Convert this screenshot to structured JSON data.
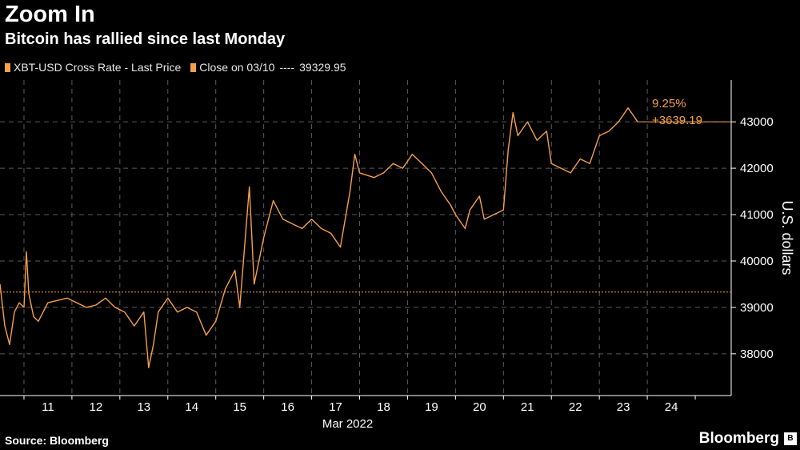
{
  "header": {
    "title": "Zoom In",
    "subtitle": "Bitcoin has rallied since last Monday"
  },
  "legend": {
    "series_label": "XBT-USD Cross Rate - Last Price",
    "close_label": "Close on 03/10",
    "close_dashes": "----",
    "close_value": "39329.95"
  },
  "footer": {
    "source": "Source: Bloomberg",
    "brand": "Bloomberg",
    "brand_icon": "B"
  },
  "colors": {
    "line": "#f5a04a",
    "background": "#000000",
    "grid": "#5a5a5a"
  },
  "chart_data": {
    "type": "line",
    "title": "Zoom In",
    "subtitle": "Bitcoin has rallied since last Monday",
    "xlabel": "Mar 2022",
    "ylabel": "U.S. dollars",
    "x_ticks": [
      "11",
      "12",
      "13",
      "14",
      "15",
      "16",
      "17",
      "18",
      "19",
      "20",
      "21",
      "22",
      "23",
      "24"
    ],
    "y_ticks": [
      38000,
      39000,
      40000,
      41000,
      42000,
      43000
    ],
    "ylim": [
      37100,
      43900
    ],
    "xlim": [
      10.5,
      25.75
    ],
    "y_axis_position": "right",
    "grid": true,
    "reference_line": {
      "label": "Close on 03/10",
      "value": 39329.95
    },
    "annotation": {
      "percent": "9.25%",
      "change": "+3639.19"
    },
    "series": [
      {
        "name": "XBT-USD Cross Rate - Last Price",
        "points": [
          [
            10.5,
            39500
          ],
          [
            10.6,
            38600
          ],
          [
            10.7,
            38200
          ],
          [
            10.8,
            38900
          ],
          [
            10.9,
            39100
          ],
          [
            11.0,
            39000
          ],
          [
            11.05,
            40200
          ],
          [
            11.1,
            39300
          ],
          [
            11.2,
            38800
          ],
          [
            11.3,
            38700
          ],
          [
            11.5,
            39100
          ],
          [
            11.7,
            39150
          ],
          [
            11.9,
            39200
          ],
          [
            12.1,
            39100
          ],
          [
            12.3,
            39000
          ],
          [
            12.5,
            39050
          ],
          [
            12.7,
            39200
          ],
          [
            12.9,
            39000
          ],
          [
            13.1,
            38900
          ],
          [
            13.3,
            38600
          ],
          [
            13.5,
            38900
          ],
          [
            13.6,
            37700
          ],
          [
            13.7,
            38200
          ],
          [
            13.8,
            38900
          ],
          [
            14.0,
            39200
          ],
          [
            14.2,
            38900
          ],
          [
            14.4,
            39000
          ],
          [
            14.6,
            38900
          ],
          [
            14.8,
            38400
          ],
          [
            15.0,
            38700
          ],
          [
            15.2,
            39400
          ],
          [
            15.4,
            39800
          ],
          [
            15.5,
            39000
          ],
          [
            15.7,
            41600
          ],
          [
            15.8,
            39500
          ],
          [
            16.0,
            40500
          ],
          [
            16.2,
            41300
          ],
          [
            16.4,
            40900
          ],
          [
            16.6,
            40800
          ],
          [
            16.8,
            40700
          ],
          [
            17.0,
            40900
          ],
          [
            17.2,
            40700
          ],
          [
            17.4,
            40600
          ],
          [
            17.6,
            40300
          ],
          [
            17.8,
            41500
          ],
          [
            17.9,
            42300
          ],
          [
            18.0,
            41900
          ],
          [
            18.3,
            41800
          ],
          [
            18.5,
            41900
          ],
          [
            18.7,
            42100
          ],
          [
            18.9,
            42000
          ],
          [
            19.1,
            42300
          ],
          [
            19.3,
            42100
          ],
          [
            19.5,
            41900
          ],
          [
            19.7,
            41500
          ],
          [
            19.9,
            41200
          ],
          [
            20.0,
            41000
          ],
          [
            20.2,
            40700
          ],
          [
            20.3,
            41100
          ],
          [
            20.5,
            41400
          ],
          [
            20.6,
            40900
          ],
          [
            20.8,
            41000
          ],
          [
            21.0,
            41100
          ],
          [
            21.1,
            42400
          ],
          [
            21.2,
            43200
          ],
          [
            21.3,
            42700
          ],
          [
            21.5,
            43000
          ],
          [
            21.7,
            42600
          ],
          [
            21.9,
            42800
          ],
          [
            22.0,
            42100
          ],
          [
            22.2,
            42000
          ],
          [
            22.4,
            41900
          ],
          [
            22.6,
            42200
          ],
          [
            22.8,
            42100
          ],
          [
            23.0,
            42700
          ],
          [
            23.2,
            42800
          ],
          [
            23.4,
            43000
          ],
          [
            23.6,
            43300
          ],
          [
            23.8,
            43000
          ]
        ]
      }
    ]
  }
}
